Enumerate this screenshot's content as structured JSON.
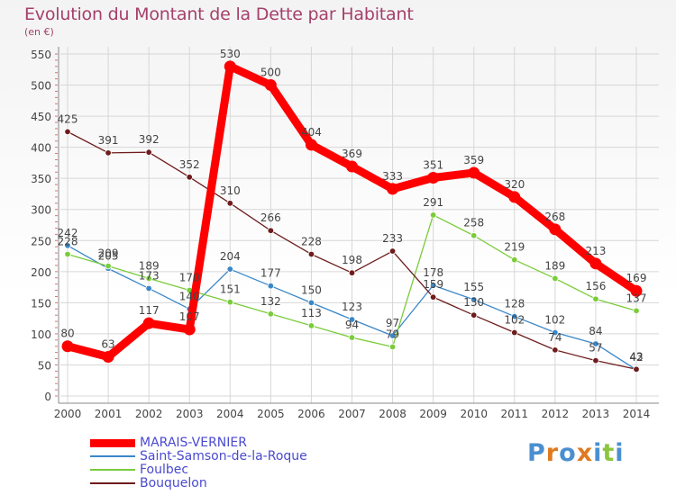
{
  "chart_data": {
    "type": "line",
    "title": "Evolution du Montant de la Dette par Habitant",
    "subtitle": "(en €)",
    "categories": [
      "2000",
      "2001",
      "2002",
      "2003",
      "2004",
      "2005",
      "2006",
      "2007",
      "2008",
      "2009",
      "2010",
      "2011",
      "2012",
      "2013",
      "2014"
    ],
    "ylim": [
      0,
      550
    ],
    "y_ticks": [
      0,
      50,
      100,
      150,
      200,
      250,
      300,
      350,
      400,
      450,
      500,
      550
    ],
    "grid": true,
    "legend_position": "bottom-left",
    "series": [
      {
        "name": "MARAIS-VERNIER",
        "color": "#ff0000",
        "values": [
          80,
          63,
          117,
          107,
          530,
          500,
          404,
          369,
          333,
          351,
          359,
          320,
          268,
          213,
          169
        ]
      },
      {
        "name": "Saint-Samson-de-la-Roque",
        "color": "#3a87c8",
        "values": [
          242,
          205,
          173,
          140,
          204,
          177,
          150,
          123,
          97,
          178,
          155,
          128,
          102,
          84,
          42
        ]
      },
      {
        "name": "Foulbec",
        "color": "#7acc3a",
        "values": [
          228,
          209,
          189,
          170,
          151,
          132,
          113,
          94,
          79,
          291,
          258,
          219,
          189,
          156,
          137
        ]
      },
      {
        "name": "Bouquelon",
        "color": "#6e1c1c",
        "values": [
          425,
          391,
          392,
          352,
          310,
          266,
          228,
          198,
          233,
          159,
          130,
          102,
          74,
          57,
          43
        ]
      }
    ]
  },
  "logo": {
    "letters": [
      "P",
      "r",
      "o",
      "x",
      "i",
      "t",
      "i"
    ],
    "colors": [
      "#4a8fd0",
      "#e07a1f",
      "#4a8fd0",
      "#e07a1f",
      "#4a8fd0",
      "#8cc63f",
      "#4a8fd0"
    ]
  }
}
